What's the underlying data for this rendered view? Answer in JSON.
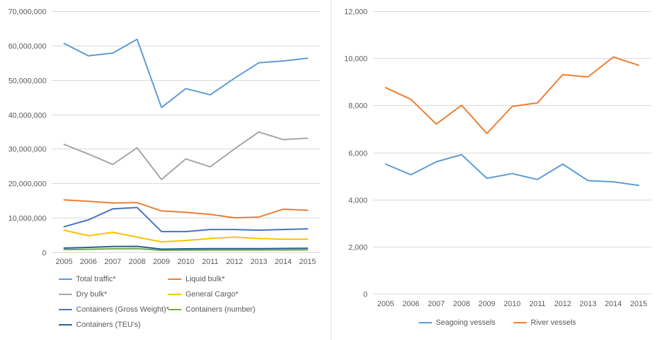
{
  "chart_data": [
    {
      "type": "line",
      "x": [
        "2005",
        "2006",
        "2007",
        "2008",
        "2009",
        "2010",
        "2011",
        "2012",
        "2013",
        "2014",
        "2015"
      ],
      "ylim": [
        0,
        70000000
      ],
      "ytick_step": 10000000,
      "grid": true,
      "legend_position": "bottom-two-columns",
      "gridline_color": "#D9D9D9",
      "axis_text_color": "#595959",
      "series": [
        {
          "name": "Total traffic*",
          "color": "#5B9BD5",
          "values": [
            60600000,
            57000000,
            57800000,
            61800000,
            42000000,
            47500000,
            45700000,
            50500000,
            55000000,
            55500000,
            56300000
          ]
        },
        {
          "name": "Liquid bulk*",
          "color": "#ED7D31",
          "values": [
            15200000,
            14800000,
            14300000,
            14400000,
            12000000,
            11600000,
            11000000,
            10000000,
            10200000,
            12500000,
            12200000
          ]
        },
        {
          "name": "Dry bulk*",
          "color": "#A5A5A5",
          "values": [
            31300000,
            28500000,
            25500000,
            30300000,
            21100000,
            27100000,
            24800000,
            30000000,
            34900000,
            32700000,
            33100000
          ]
        },
        {
          "name": "General Cargo*",
          "color": "#FFC000",
          "values": [
            6400000,
            4800000,
            5800000,
            4400000,
            3000000,
            3400000,
            4000000,
            4400000,
            4000000,
            3800000,
            3800000
          ]
        },
        {
          "name": "Containers (Gross Weight)*",
          "color": "#4472C4",
          "values": [
            7400000,
            9400000,
            12600000,
            13000000,
            6000000,
            6000000,
            6600000,
            6600000,
            6400000,
            6600000,
            6800000
          ]
        },
        {
          "name": "Containers (number)",
          "color": "#70AD47",
          "values": [
            750000,
            850000,
            1000000,
            1050000,
            550000,
            600000,
            620000,
            630000,
            640000,
            660000,
            680000
          ]
        },
        {
          "name": "Containers (TEU's)",
          "color": "#255E91",
          "values": [
            1200000,
            1400000,
            1650000,
            1700000,
            900000,
            1000000,
            1050000,
            1050000,
            1050000,
            1100000,
            1150000
          ]
        }
      ]
    },
    {
      "type": "line",
      "x": [
        "2005",
        "2006",
        "2007",
        "2008",
        "2009",
        "2010",
        "2011",
        "2012",
        "2013",
        "2014",
        "2015"
      ],
      "ylim": [
        0,
        12000
      ],
      "ytick_step": 2000,
      "grid": true,
      "legend_position": "bottom-center",
      "gridline_color": "#D9D9D9",
      "axis_text_color": "#595959",
      "series": [
        {
          "name": "Seagoing vessels",
          "color": "#5B9BD5",
          "values": [
            5500,
            5050,
            5600,
            5900,
            4900,
            5100,
            4850,
            5500,
            4800,
            4750,
            4600
          ]
        },
        {
          "name": "River vessels",
          "color": "#ED7D31",
          "values": [
            8750,
            8250,
            7200,
            8000,
            6800,
            7950,
            8100,
            9300,
            9200,
            10050,
            9700
          ]
        }
      ]
    }
  ]
}
